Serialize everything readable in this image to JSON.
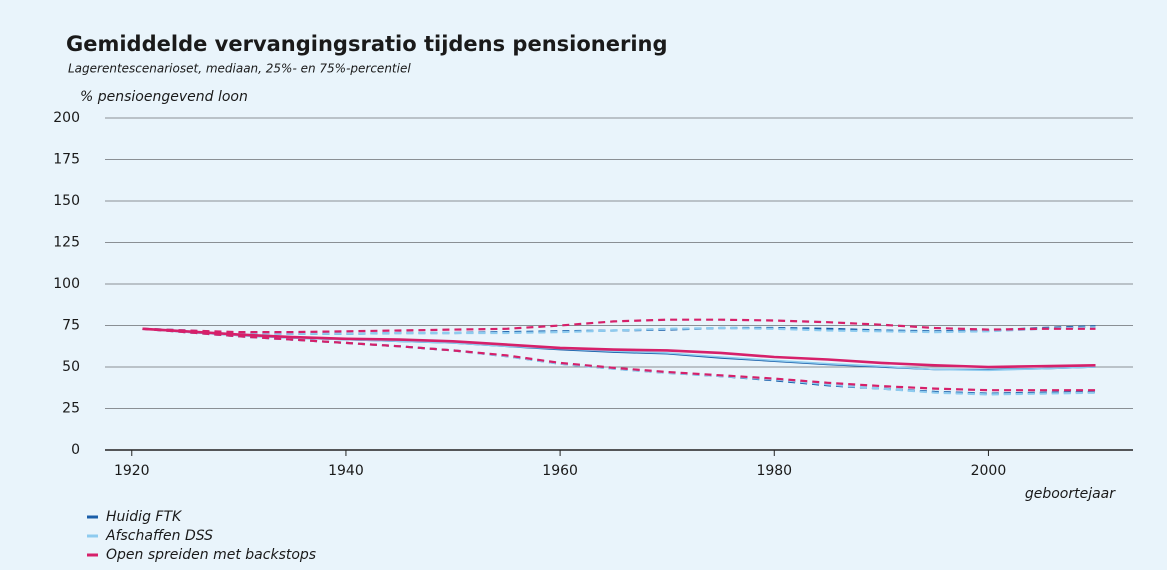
{
  "chart_data": {
    "type": "line",
    "title": "Gemiddelde vervangingsratio tijdens pensionering",
    "subtitle": "Lagerentescenarioset, mediaan, 25%- en 75%-percentiel",
    "y_label": "% pensioengevend loon",
    "x_label": "geboortejaar",
    "x": [
      1921,
      1925,
      1930,
      1935,
      1940,
      1945,
      1950,
      1955,
      1960,
      1965,
      1970,
      1975,
      1980,
      1985,
      1990,
      1995,
      2000,
      2005,
      2010
    ],
    "series": [
      {
        "name": "Huidig FTK",
        "color": "#1a5ea8",
        "values": [
          73,
          71,
          69,
          67.5,
          66.5,
          65.5,
          64.5,
          62.5,
          60.5,
          59,
          58,
          55.5,
          53.5,
          51.5,
          50,
          48.5,
          48.5,
          49,
          50
        ],
        "p25": [
          73,
          71,
          68.5,
          66.5,
          64.5,
          62.5,
          60,
          56.5,
          52,
          49,
          46.5,
          44.5,
          42,
          39,
          37,
          35,
          34,
          34.5,
          35
        ],
        "p75": [
          73,
          72,
          70.5,
          70,
          70,
          70.5,
          70.5,
          71,
          71.5,
          72,
          72.5,
          73.5,
          73.5,
          73,
          72,
          71.5,
          72,
          73.5,
          74.5
        ]
      },
      {
        "name": "Afschaffen DSS",
        "color": "#8ecbef",
        "values": [
          73,
          71,
          69,
          67.5,
          66.5,
          65.5,
          64.5,
          62.5,
          61,
          59.5,
          58.5,
          56,
          54,
          52,
          50.5,
          48.5,
          48,
          49,
          50
        ],
        "p25": [
          73,
          71,
          68.5,
          66.5,
          64.5,
          62.5,
          60,
          56.5,
          52,
          49,
          46.5,
          44.5,
          42.5,
          39.5,
          37,
          34.5,
          33.5,
          34,
          34.5
        ],
        "p75": [
          73,
          72,
          70.5,
          70,
          70,
          70.5,
          70.5,
          70.5,
          71,
          72,
          73,
          73.5,
          73,
          72,
          71.5,
          71,
          71.5,
          73,
          74
        ]
      },
      {
        "name": "Open spreiden met backstops",
        "color": "#d6206a",
        "values": [
          73,
          71.5,
          69.5,
          68,
          67,
          66.5,
          65.5,
          63.5,
          61.5,
          60.5,
          60,
          58.5,
          56,
          54.5,
          52.5,
          51,
          50,
          50.5,
          51
        ],
        "p25": [
          73,
          71,
          68.5,
          66.5,
          64.5,
          62.5,
          60,
          57,
          52.5,
          49.5,
          47,
          45,
          43,
          40.5,
          38.5,
          37,
          36,
          36,
          36
        ],
        "p75": [
          73,
          72,
          71,
          71,
          71.5,
          72,
          72.5,
          73,
          75,
          77.5,
          78.5,
          78.5,
          78,
          77,
          75.5,
          73.5,
          72.5,
          73,
          73
        ]
      }
    ],
    "xlim": [
      1917.5,
      2013.5
    ],
    "xticks": [
      1920,
      1940,
      1960,
      1980,
      2000
    ],
    "ylim": [
      0,
      200
    ],
    "yticks": [
      0,
      25,
      50,
      75,
      100,
      125,
      150,
      175,
      200
    ],
    "grid": true
  }
}
